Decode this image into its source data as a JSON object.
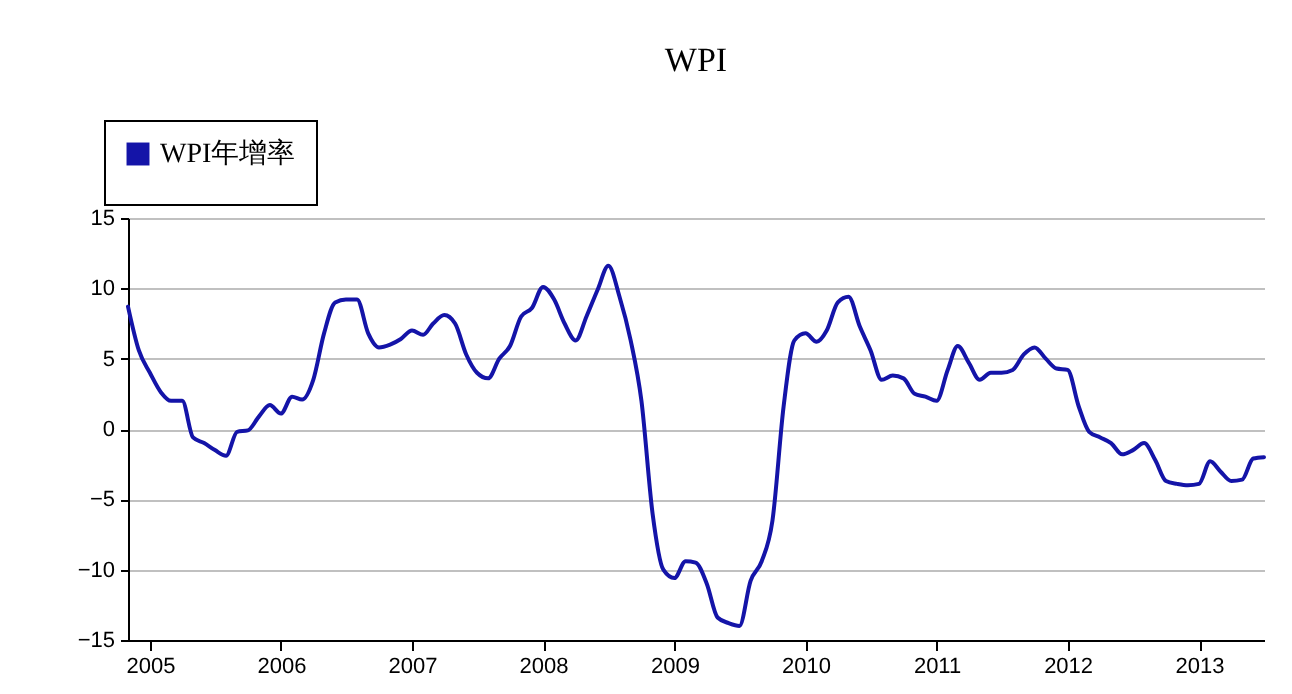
{
  "chart_data": {
    "type": "line",
    "title": "WPI",
    "x": [
      "2004-11",
      "2004-12",
      "2005-01",
      "2005-02",
      "2005-03",
      "2005-04",
      "2005-05",
      "2005-06",
      "2005-07",
      "2005-08",
      "2005-09",
      "2005-10",
      "2005-11",
      "2005-12",
      "2006-01",
      "2006-02",
      "2006-03",
      "2006-04",
      "2006-05",
      "2006-06",
      "2006-07",
      "2006-08",
      "2006-09",
      "2006-10",
      "2006-11",
      "2006-12",
      "2007-01",
      "2007-02",
      "2007-03",
      "2007-04",
      "2007-05",
      "2007-06",
      "2007-07",
      "2007-08",
      "2007-09",
      "2007-10",
      "2007-11",
      "2007-12",
      "2008-01",
      "2008-02",
      "2008-03",
      "2008-04",
      "2008-05",
      "2008-06",
      "2008-07",
      "2008-08",
      "2008-09",
      "2008-10",
      "2008-11",
      "2008-12",
      "2009-01",
      "2009-02",
      "2009-03",
      "2009-04",
      "2009-05",
      "2009-06",
      "2009-07",
      "2009-08",
      "2009-09",
      "2009-10",
      "2009-11",
      "2009-12",
      "2010-01",
      "2010-02",
      "2010-03",
      "2010-04",
      "2010-05",
      "2010-06",
      "2010-07",
      "2010-08",
      "2010-09",
      "2010-10",
      "2010-11",
      "2010-12",
      "2011-01",
      "2011-02",
      "2011-03",
      "2011-04",
      "2011-05",
      "2011-06",
      "2011-07",
      "2011-08",
      "2011-09",
      "2011-10",
      "2011-11",
      "2011-12",
      "2012-01",
      "2012-02",
      "2012-03",
      "2012-04",
      "2012-05",
      "2012-06",
      "2012-07",
      "2012-08",
      "2012-09",
      "2012-10",
      "2012-11",
      "2012-12",
      "2013-01",
      "2013-02",
      "2013-03",
      "2013-04",
      "2013-05",
      "2013-06",
      "2013-07"
    ],
    "series": [
      {
        "name": "WPI年增率",
        "color": "#1414a8",
        "values": [
          8.7,
          5.6,
          4.0,
          2.6,
          2.0,
          2.0,
          -0.6,
          -1.0,
          -1.5,
          -1.9,
          -0.2,
          -0.1,
          0.9,
          1.7,
          1.1,
          2.3,
          2.1,
          3.5,
          6.8,
          9.0,
          9.2,
          9.2,
          6.8,
          5.8,
          6.0,
          6.4,
          7.0,
          6.7,
          7.5,
          8.1,
          7.5,
          5.3,
          4.0,
          3.6,
          5.0,
          5.9,
          8.0,
          8.6,
          10.1,
          9.2,
          7.5,
          6.3,
          8.0,
          9.9,
          11.6,
          9.4,
          6.3,
          2.0,
          -6.0,
          -10.0,
          -10.6,
          -9.4,
          -9.5,
          -11.0,
          -13.4,
          -13.8,
          -14.0,
          -10.8,
          -9.4,
          -6.5,
          1.6,
          6.3,
          6.8,
          6.2,
          7.0,
          9.0,
          9.4,
          7.3,
          5.6,
          3.5,
          3.8,
          3.6,
          2.5,
          2.3,
          2.0,
          4.2,
          5.9,
          4.7,
          3.5,
          4.0,
          4.0,
          4.2,
          5.3,
          5.8,
          5.0,
          4.3,
          4.2,
          1.6,
          -0.2,
          -0.6,
          -1.0,
          -1.8,
          -1.5,
          -1.0,
          -2.2,
          -3.7,
          -3.9,
          -4.0,
          -3.9,
          -2.3,
          -3.0,
          -3.7,
          -3.6,
          -2.1,
          -2.0
        ]
      }
    ],
    "xlim": [
      "2004-11",
      "2013-07"
    ],
    "xticks": [
      {
        "value": "2005-01",
        "label": "2005"
      },
      {
        "value": "2006-01",
        "label": "2006"
      },
      {
        "value": "2007-01",
        "label": "2007"
      },
      {
        "value": "2008-01",
        "label": "2008"
      },
      {
        "value": "2009-01",
        "label": "2009"
      },
      {
        "value": "2010-01",
        "label": "2010"
      },
      {
        "value": "2011-01",
        "label": "2011"
      },
      {
        "value": "2012-01",
        "label": "2012"
      },
      {
        "value": "2013-01",
        "label": "2013"
      }
    ],
    "ylim": [
      -15,
      15
    ],
    "yticks": [
      -15,
      -10,
      -5,
      0,
      5,
      10,
      15
    ],
    "grid": "y",
    "legend": "top left",
    "marker": "none",
    "line_style": "solid"
  }
}
